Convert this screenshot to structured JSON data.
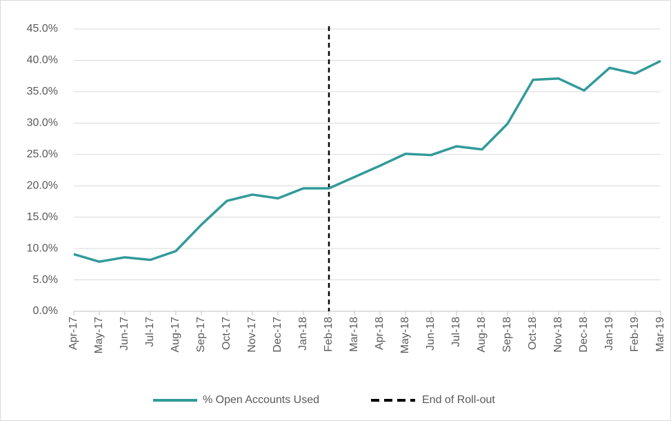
{
  "chart_data": {
    "type": "line",
    "categories": [
      "Apr-17",
      "May-17",
      "Jun-17",
      "Jul-17",
      "Aug-17",
      "Sep-17",
      "Oct-17",
      "Nov-17",
      "Dec-17",
      "Jan-18",
      "Feb-18",
      "Mar-18",
      "Apr-18",
      "May-18",
      "Jun-18",
      "Jul-18",
      "Aug-18",
      "Sep-18",
      "Oct-18",
      "Nov-18",
      "Dec-18",
      "Jan-19",
      "Feb-19",
      "Mar-19"
    ],
    "series": [
      {
        "name": "% Open Accounts Used",
        "color": "#329a9a",
        "values": [
          9.1,
          7.9,
          8.6,
          8.2,
          9.6,
          13.8,
          17.6,
          18.6,
          18.0,
          19.6,
          19.6,
          21.4,
          23.2,
          25.1,
          24.9,
          26.3,
          25.8,
          29.9,
          36.9,
          37.1,
          35.2,
          38.8,
          37.9,
          39.9
        ]
      }
    ],
    "reference_line": {
      "name": "End of Roll-out",
      "x": "Feb-18",
      "color": "#000000"
    },
    "ylim": [
      0,
      45
    ],
    "yticks": [
      {
        "value": 0,
        "label": "0.0%"
      },
      {
        "value": 5,
        "label": "5.0%"
      },
      {
        "value": 10,
        "label": "10.0%"
      },
      {
        "value": 15,
        "label": "15.0%"
      },
      {
        "value": 20,
        "label": "20.0%"
      },
      {
        "value": 25,
        "label": "25.0%"
      },
      {
        "value": 30,
        "label": "30.0%"
      },
      {
        "value": 35,
        "label": "35.0%"
      },
      {
        "value": 40,
        "label": "40.0%"
      },
      {
        "value": 45,
        "label": "45.0%"
      }
    ],
    "grid": true,
    "legend": "bottom"
  }
}
